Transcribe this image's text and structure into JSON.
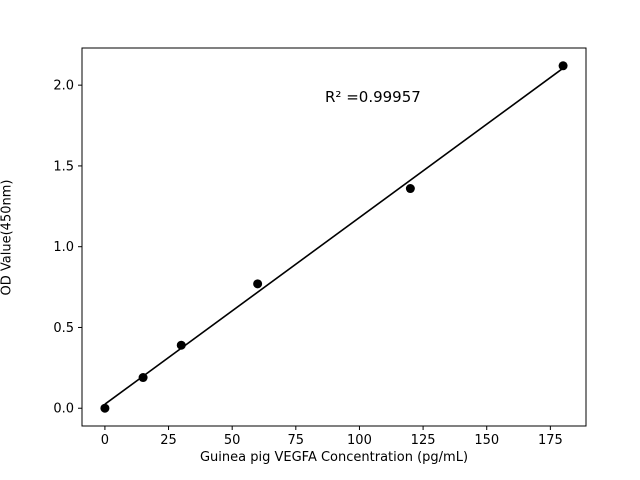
{
  "chart_data": {
    "type": "scatter",
    "title": "",
    "xlabel": "Guinea pig VEGFA Concentration (pg/mL)",
    "ylabel": "OD Value(450nm)",
    "annotation": "R² =0.99957",
    "x": [
      0,
      15,
      30,
      60,
      120,
      180
    ],
    "y": [
      0.0,
      0.19,
      0.39,
      0.77,
      1.36,
      2.12
    ],
    "xticks": [
      0,
      25,
      50,
      75,
      100,
      125,
      150,
      175
    ],
    "xticklabels": [
      "0",
      "25",
      "50",
      "75",
      "100",
      "125",
      "150",
      "175"
    ],
    "yticks": [
      0.0,
      0.5,
      1.0,
      1.5,
      2.0
    ],
    "yticklabels": [
      "0.0",
      "0.5",
      "1.0",
      "1.5",
      "2.0"
    ],
    "xlim": [
      -9,
      189
    ],
    "ylim": [
      -0.11,
      2.23
    ],
    "fit_line": "linear",
    "marker_color": "#000000",
    "line_color": "#000000",
    "axis_color": "#000000",
    "background": "#ffffff",
    "grid": false,
    "legend": "none"
  }
}
